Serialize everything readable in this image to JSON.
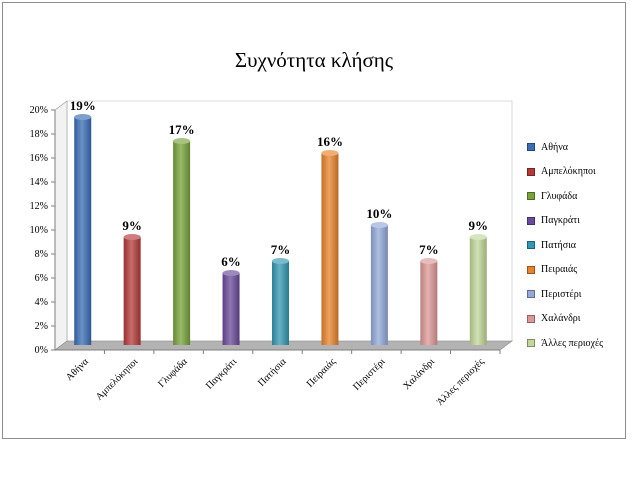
{
  "chart_data": {
    "type": "bar",
    "title": "Συχνότητα κλήσης",
    "categories": [
      "Αθήνα",
      "Αμπελόκηποι",
      "Γλυφάδα",
      "Παγκράτι",
      "Πατήσια",
      "Πειραιάς",
      "Περιστέρι",
      "Χαλάνδρι",
      "Άλλες περιοχές"
    ],
    "values": [
      19,
      9,
      17,
      6,
      7,
      16,
      10,
      7,
      9
    ],
    "data_labels": [
      "19%",
      "9%",
      "17%",
      "6%",
      "7%",
      "16%",
      "10%",
      "7%",
      "9%"
    ],
    "legend_labels": [
      "Αθήνα",
      "Αμπελόκηποι",
      "Γλυφάδα",
      "Παγκράτι",
      "Πατήσια",
      "Πειραιάς",
      "Περιστέρι",
      "Χαλάνδρι",
      "Άλλες περιοχές"
    ],
    "y_ticks": [
      "0%",
      "2%",
      "4%",
      "6%",
      "8%",
      "10%",
      "12%",
      "14%",
      "16%",
      "18%",
      "20%"
    ],
    "ylim": [
      0,
      20
    ],
    "grid": false,
    "legend_position": "right",
    "colors": [
      "#3a6db5",
      "#b5393a",
      "#78a33a",
      "#6a4a99",
      "#3397b3",
      "#e8832b",
      "#93a9d9",
      "#dc9896",
      "#c2d799"
    ]
  }
}
